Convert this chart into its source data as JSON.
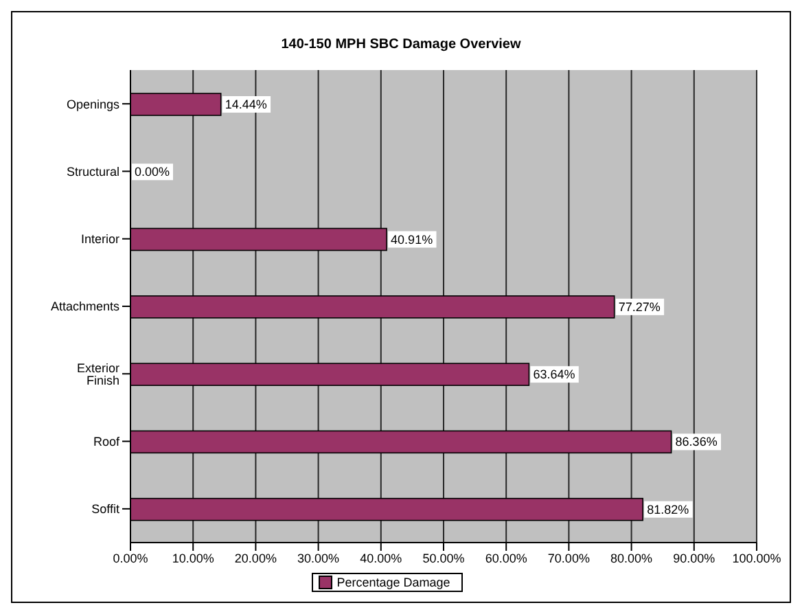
{
  "chart_data": {
    "type": "bar",
    "orientation": "horizontal",
    "title": "140-150 MPH SBC Damage Overview",
    "categories": [
      "Openings",
      "Structural",
      "Interior",
      "Attachments",
      "Exterior Finish",
      "Roof",
      "Soffit"
    ],
    "series": [
      {
        "name": "Percentage Damage",
        "color": "#993366",
        "values": [
          14.44,
          0,
          40.91,
          77.27,
          63.64,
          86.36,
          81.82
        ],
        "value_labels": [
          "14.44%",
          "0.00%",
          "40.91%",
          "77.27%",
          "63.64%",
          "86.36%",
          "81.82%"
        ]
      }
    ],
    "xlim": [
      0,
      100
    ],
    "xticks": [
      {
        "value": 0,
        "label": "0.00%"
      },
      {
        "value": 10,
        "label": "10.00%"
      },
      {
        "value": 20,
        "label": "20.00%"
      },
      {
        "value": 30,
        "label": "30.00%"
      },
      {
        "value": 40,
        "label": "40.00%"
      },
      {
        "value": 50,
        "label": "50.00%"
      },
      {
        "value": 60,
        "label": "60.00%"
      },
      {
        "value": 70,
        "label": "70.00%"
      },
      {
        "value": 80,
        "label": "80.00%"
      },
      {
        "value": 90,
        "label": "90.00%"
      },
      {
        "value": 100,
        "label": "100.00%"
      }
    ],
    "grid": "x",
    "legend": "bottom"
  }
}
